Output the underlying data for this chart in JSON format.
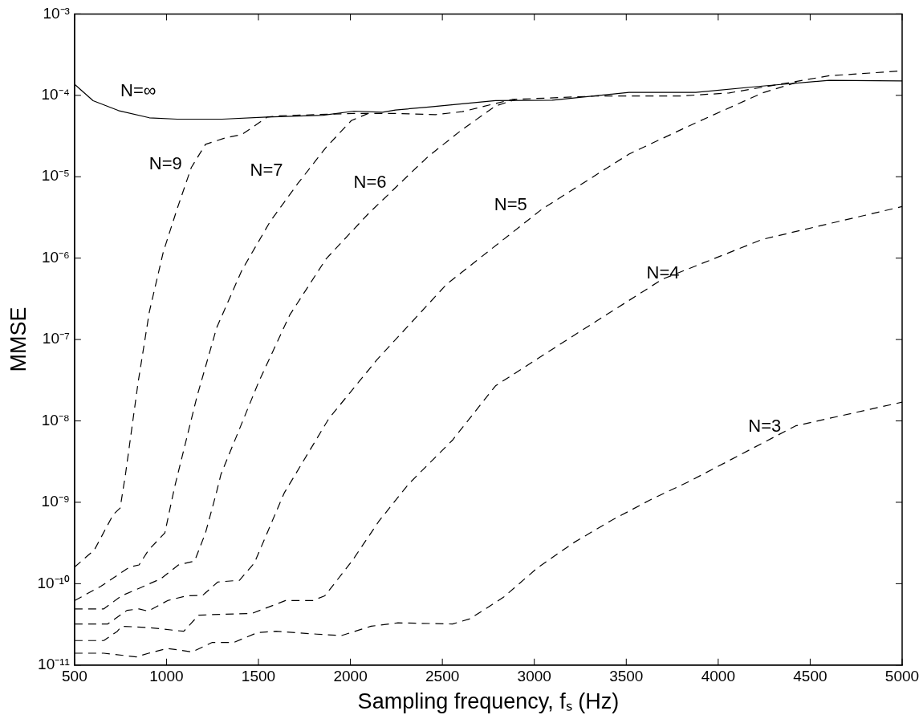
{
  "chart_data": {
    "type": "line",
    "xlabel": "Sampling frequency, fₛ (Hz)",
    "ylabel": "MMSE",
    "log": "y",
    "marker": "none",
    "grid": false,
    "xlim": [
      500,
      5000
    ],
    "xticks": [
      500,
      1000,
      1500,
      2000,
      2500,
      3000,
      3500,
      4000,
      4500,
      5000
    ],
    "ylim": [
      1e-11,
      0.001
    ],
    "yticks": [
      {
        "value": 1e-11,
        "label": "10⁻¹¹"
      },
      {
        "value": 1e-10,
        "label": "10⁻¹⁰"
      },
      {
        "value": 1e-09,
        "label": "10⁻⁹"
      },
      {
        "value": 1e-08,
        "label": "10⁻⁸"
      },
      {
        "value": 1e-07,
        "label": "10⁻⁷"
      },
      {
        "value": 1e-06,
        "label": "10⁻⁶"
      },
      {
        "value": 1e-05,
        "label": "10⁻⁵"
      },
      {
        "value": 0.0001,
        "label": "10⁻⁴"
      },
      {
        "value": 0.001,
        "label": "10⁻³"
      }
    ],
    "series": [
      {
        "name": "N=∞",
        "color": "#000000",
        "line_style": "solid",
        "x": [
          500,
          601,
          739,
          907,
          1059,
          1302,
          1546,
          1851,
          2019,
          2174,
          2245,
          2426,
          2789,
          3097,
          3515,
          3878,
          4240,
          4603,
          5000
        ],
        "values": [
          0.000137,
          8.6e-05,
          6.5e-05,
          5.3e-05,
          5.1e-05,
          5.1e-05,
          5.4e-05,
          5.7e-05,
          6.4e-05,
          6.2e-05,
          6.6e-05,
          7.2e-05,
          8.6e-05,
          8.7e-05,
          0.000109,
          0.000109,
          0.00013,
          0.000153,
          0.00015
        ]
      },
      {
        "name": "N=9",
        "color": "#000000",
        "line_style": "dashed",
        "x": [
          500,
          608,
          711,
          748,
          777,
          846,
          907,
          983,
          1059,
          1135,
          1212,
          1319,
          1410,
          1547,
          1608,
          2019,
          2245,
          2462,
          2608,
          2879,
          3333,
          3785,
          4059,
          4422,
          4603,
          5000
        ],
        "values": [
          1.6e-10,
          2.6e-10,
          7.1e-10,
          8.5e-10,
          2.2e-09,
          3e-08,
          2.2e-07,
          1.2e-06,
          4.1e-06,
          1.3e-05,
          2.5e-05,
          3e-05,
          3.3e-05,
          5.4e-05,
          5.6e-05,
          6e-05,
          6e-05,
          5.8e-05,
          6.3e-05,
          8.9e-05,
          9.8e-05,
          9.8e-05,
          0.000107,
          0.000148,
          0.000174,
          0.0002
        ]
      },
      {
        "name": "N=7",
        "color": "#000000",
        "line_style": "dashed",
        "x": [
          500,
          644,
          799,
          851,
          903,
          991,
          1043,
          1166,
          1273,
          1410,
          1563,
          1715,
          1868,
          2005,
          2097
        ],
        "values": [
          6.2e-11,
          9.3e-11,
          1.6e-10,
          1.7e-10,
          2.6e-10,
          4.2e-10,
          1.5e-09,
          2e-08,
          1.4e-07,
          7.1e-07,
          2.8e-06,
          8.3e-06,
          2.3e-05,
          4.9e-05,
          6e-05
        ]
      },
      {
        "name": "N=6",
        "color": "#000000",
        "line_style": "dashed",
        "x": [
          500,
          659,
          755,
          858,
          969,
          1065,
          1153,
          1212,
          1271,
          1296,
          1501,
          1670,
          1868,
          2097,
          2326,
          2426,
          2608,
          2789,
          2898
        ],
        "values": [
          4.9e-11,
          4.9e-11,
          7.1e-11,
          8.9e-11,
          1.15e-10,
          1.7e-10,
          1.9e-10,
          4.2e-10,
          1.3e-09,
          2.2e-09,
          3e-08,
          2e-07,
          9.8e-07,
          3.5e-06,
          1.1e-05,
          1.8e-05,
          3.8e-05,
          7.4e-05,
          8.9e-05
        ]
      },
      {
        "name": "N=5",
        "color": "#000000",
        "line_style": "dashed",
        "x": [
          500,
          681,
          785,
          851,
          900,
          1006,
          1109,
          1197,
          1279,
          1397,
          1478,
          1640,
          1883,
          2143,
          2524,
          3042,
          3515,
          3878,
          4240,
          4441
        ],
        "values": [
          3.2e-11,
          3.2e-11,
          4.7e-11,
          4.9e-11,
          4.6e-11,
          6.2e-11,
          7.1e-11,
          7.2e-11,
          1.05e-10,
          1.1e-10,
          1.8e-10,
          1.3e-09,
          1.07e-08,
          5.6e-08,
          4.8e-07,
          4e-06,
          1.9e-05,
          4.6e-05,
          0.000107,
          0.000148
        ]
      },
      {
        "name": "N=4",
        "color": "#000000",
        "line_style": "dashed",
        "x": [
          500,
          659,
          733,
          755,
          895,
          1094,
          1175,
          1286,
          1463,
          1647,
          1795,
          1861,
          2009,
          2156,
          2319,
          2555,
          2789,
          3152,
          3696,
          4240,
          5000
        ],
        "values": [
          2e-11,
          2e-11,
          2.6e-11,
          3e-11,
          2.9e-11,
          2.6e-11,
          4.1e-11,
          4.2e-11,
          4.3e-11,
          6.2e-11,
          6.2e-11,
          7.1e-11,
          1.9e-10,
          5.9e-10,
          1.7e-09,
          5.8e-09,
          2.7e-08,
          9.1e-08,
          5.5e-07,
          1.7e-06,
          4.3e-06
        ]
      },
      {
        "name": "N=3",
        "color": "#000000",
        "line_style": "dashed",
        "x": [
          500,
          659,
          836,
          903,
          1006,
          1139,
          1249,
          1367,
          1493,
          1596,
          1817,
          1950,
          2112,
          2259,
          2555,
          2650,
          2832,
          3015,
          3215,
          3414,
          3630,
          3841,
          4421,
          5000
        ],
        "values": [
          1.4e-11,
          1.4e-11,
          1.26e-11,
          1.4e-11,
          1.6e-11,
          1.45e-11,
          1.9e-11,
          1.9e-11,
          2.5e-11,
          2.6e-11,
          2.4e-11,
          2.3e-11,
          3e-11,
          3.3e-11,
          3.2e-11,
          3.7e-11,
          6.8e-11,
          1.55e-10,
          3.2e-10,
          5.9e-10,
          1.07e-09,
          1.8e-09,
          8.7e-09,
          1.7e-08
        ]
      }
    ]
  }
}
